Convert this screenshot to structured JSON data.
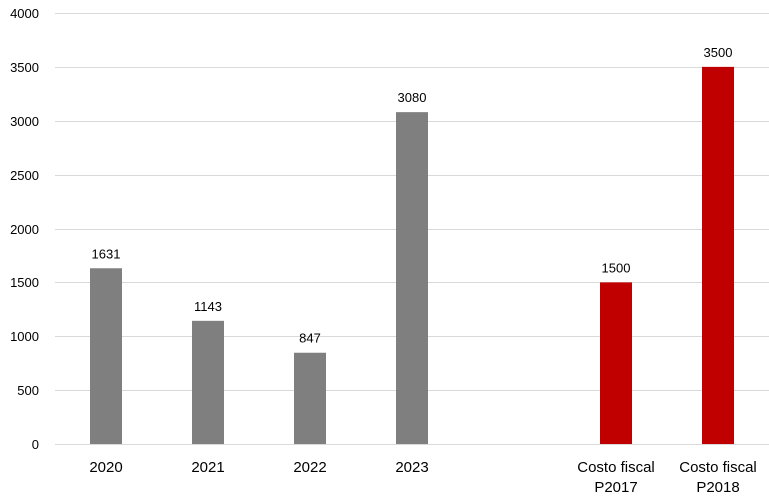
{
  "chart_data": {
    "type": "bar",
    "title": "",
    "xlabel": "",
    "ylabel": "",
    "ylim": [
      0,
      4000
    ],
    "yticks": [
      0,
      500,
      1000,
      1500,
      2000,
      2500,
      3000,
      3500,
      4000
    ],
    "grid": true,
    "legend": "none",
    "categories": [
      [
        "2020"
      ],
      [
        "2021"
      ],
      [
        "2022"
      ],
      [
        "2023"
      ],
      [
        ""
      ],
      [
        "Costo fiscal",
        "P2017"
      ],
      [
        "Costo fiscal",
        "P2018"
      ]
    ],
    "values": [
      1631,
      1143,
      847,
      3080,
      null,
      1500,
      3500
    ],
    "colors": [
      "#7f7f7f",
      "#7f7f7f",
      "#7f7f7f",
      "#7f7f7f",
      null,
      "#c00000",
      "#c00000"
    ]
  }
}
